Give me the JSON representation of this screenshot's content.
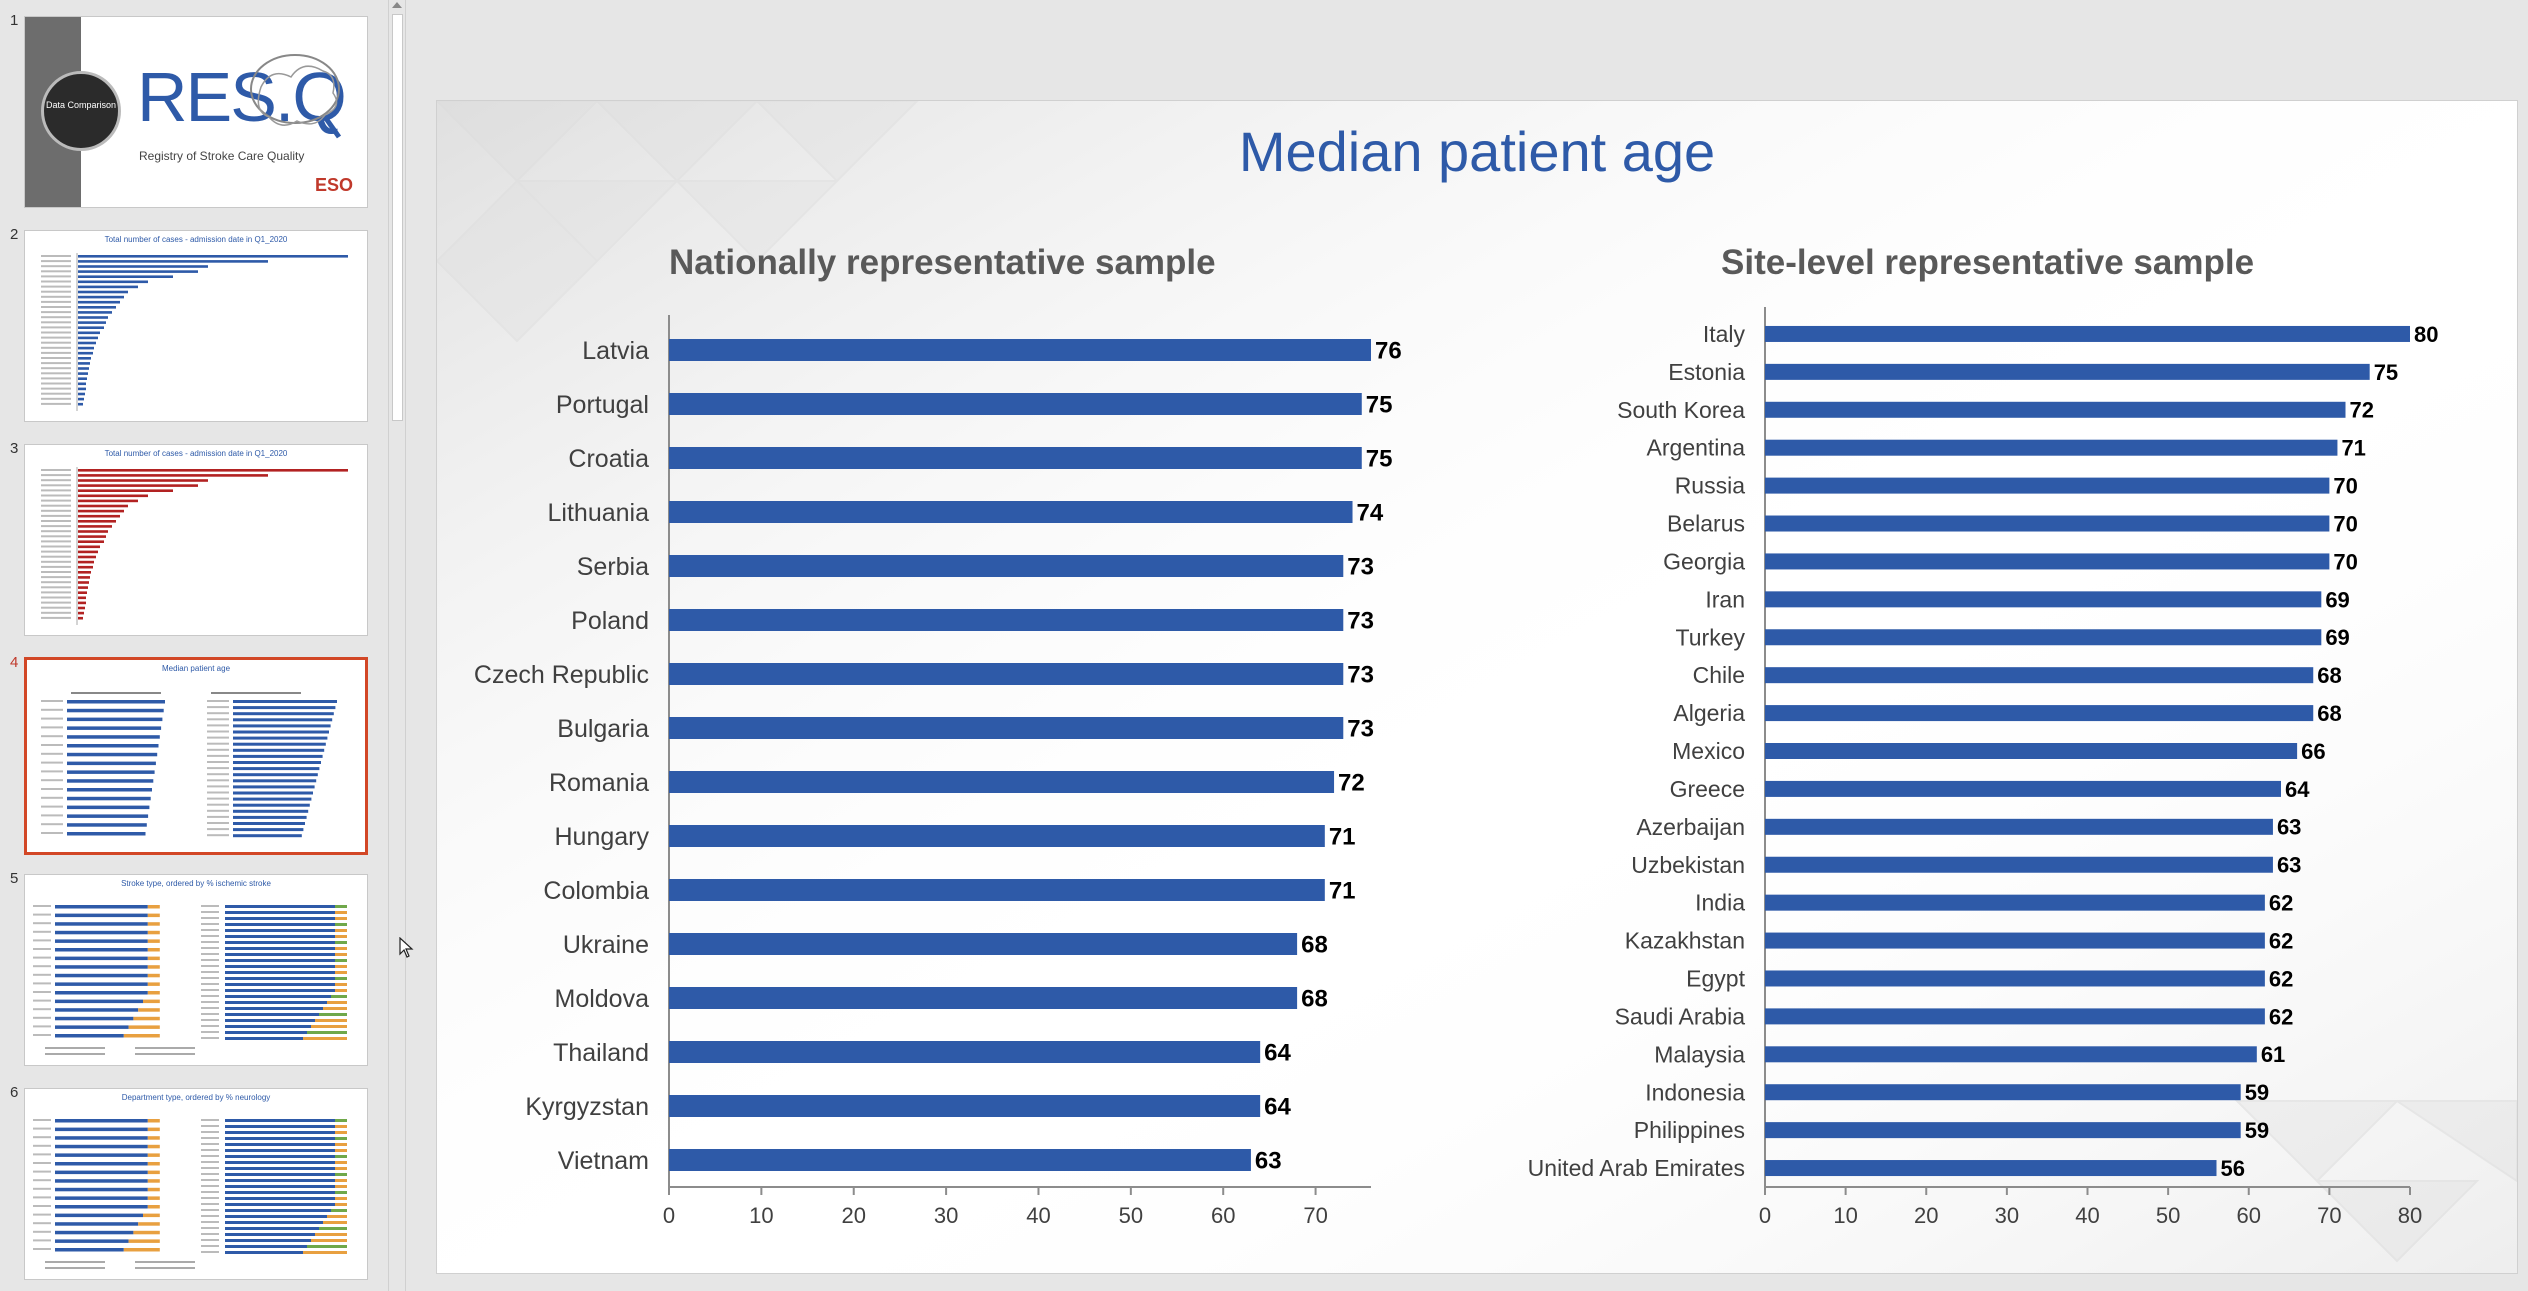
{
  "thumbnails": [
    {
      "number": "1",
      "title": "",
      "logo_text": "RES.Q",
      "subtitle": "Registry of Stroke Care Quality",
      "circle_text": "Data Comparison",
      "org": "ESO"
    },
    {
      "number": "2",
      "title": "Total number of cases - admission date in Q1_2020"
    },
    {
      "number": "3",
      "title": "Total number of cases - admission date in Q1_2020"
    },
    {
      "number": "4",
      "title": "Median patient age",
      "active": true
    },
    {
      "number": "5",
      "title": "Stroke type, ordered by % ischemic stroke"
    },
    {
      "number": "6",
      "title": "Department type, ordered by % neurology"
    }
  ],
  "slide": {
    "title": "Median patient age"
  },
  "colors": {
    "bar": "#2e5aa8",
    "title": "#2e5aa8",
    "subtitle": "#595959",
    "active_thumb_border": "#d24726"
  },
  "chart_data": [
    {
      "type": "bar",
      "orientation": "horizontal",
      "title": "Nationally representative sample",
      "categories": [
        "Latvia",
        "Portugal",
        "Croatia",
        "Lithuania",
        "Serbia",
        "Poland",
        "Czech Republic",
        "Bulgaria",
        "Romania",
        "Hungary",
        "Colombia",
        "Ukraine",
        "Moldova",
        "Thailand",
        "Kyrgyzstan",
        "Vietnam"
      ],
      "values": [
        76,
        75,
        75,
        74,
        73,
        73,
        73,
        73,
        72,
        71,
        71,
        68,
        68,
        64,
        64,
        63
      ],
      "xlim": [
        0,
        76
      ],
      "ticks": [
        0,
        10,
        20,
        30,
        40,
        50,
        60,
        70
      ]
    },
    {
      "type": "bar",
      "orientation": "horizontal",
      "title": "Site-level representative sample",
      "categories": [
        "Italy",
        "Estonia",
        "South Korea",
        "Argentina",
        "Russia",
        "Belarus",
        "Georgia",
        "Iran",
        "Turkey",
        "Chile",
        "Algeria",
        "Mexico",
        "Greece",
        "Azerbaijan",
        "Uzbekistan",
        "India",
        "Kazakhstan",
        "Egypt",
        "Saudi Arabia",
        "Malaysia",
        "Indonesia",
        "Philippines",
        "United Arab Emirates"
      ],
      "values": [
        80,
        75,
        72,
        71,
        70,
        70,
        70,
        69,
        69,
        68,
        68,
        66,
        64,
        63,
        63,
        62,
        62,
        62,
        62,
        61,
        59,
        59,
        56
      ],
      "xlim": [
        0,
        80
      ],
      "ticks": [
        0,
        10,
        20,
        30,
        40,
        50,
        60,
        70,
        80
      ]
    }
  ]
}
